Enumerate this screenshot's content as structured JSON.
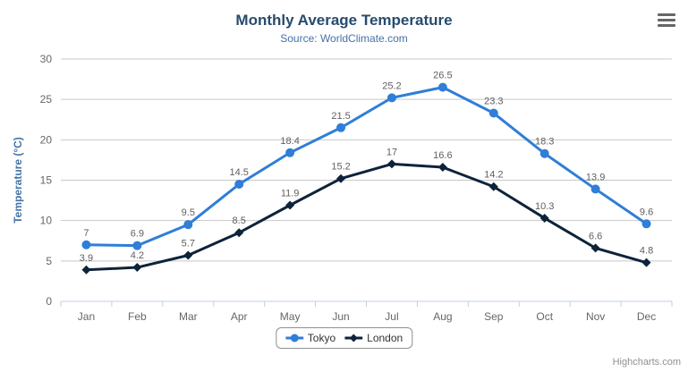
{
  "chart_data": {
    "type": "line",
    "title": "Monthly Average Temperature",
    "subtitle": "Source: WorldClimate.com",
    "categories": [
      "Jan",
      "Feb",
      "Mar",
      "Apr",
      "May",
      "Jun",
      "Jul",
      "Aug",
      "Sep",
      "Oct",
      "Nov",
      "Dec"
    ],
    "series": [
      {
        "name": "Tokyo",
        "marker": "circle",
        "color": "#2f7ed8",
        "values": [
          7,
          6.9,
          9.5,
          14.5,
          18.4,
          21.5,
          25.2,
          26.5,
          23.3,
          18.3,
          13.9,
          9.6
        ]
      },
      {
        "name": "London",
        "marker": "diamond",
        "color": "#0d233a",
        "values": [
          3.9,
          4.2,
          5.7,
          8.5,
          11.9,
          15.2,
          17,
          16.6,
          14.2,
          10.3,
          6.6,
          4.8
        ]
      }
    ],
    "xlabel": "",
    "ylabel": "Temperature (°C)",
    "ylim": [
      0,
      30
    ],
    "ytick_interval": 5,
    "grid": true,
    "legend_position": "bottom"
  },
  "colors": {
    "title": "#274b6d",
    "subtitle": "#4572A7",
    "axis_title": "#4572A7",
    "axis_label": "#666666",
    "grid": "#C8C8C8",
    "axis_line": "#C0D0E0",
    "data_label": "#606060",
    "legend_text": "#333333",
    "credits": "#909090"
  },
  "credits": {
    "label": "Highcharts.com"
  }
}
